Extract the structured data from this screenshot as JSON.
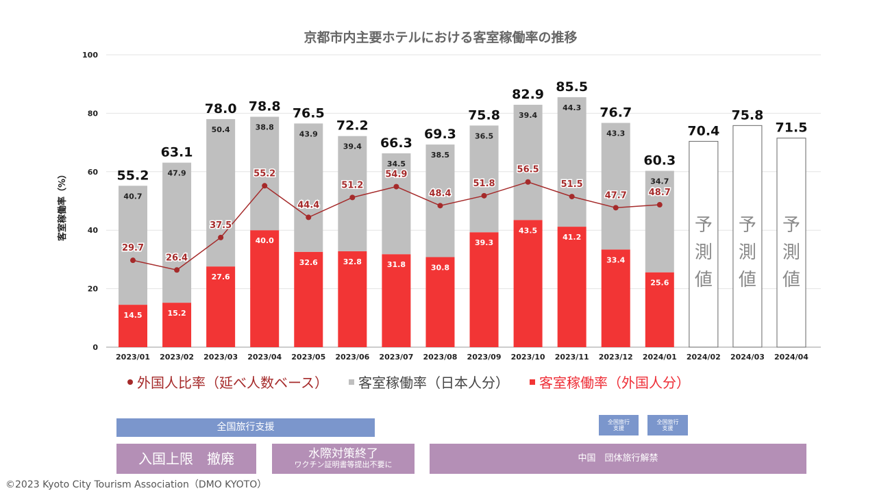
{
  "chart_data": {
    "type": "bar",
    "stacked": true,
    "title": "京都市内主要ホテルにおける客室稼働率の推移",
    "xlabel": "",
    "ylabel": "客室稼働率（%）",
    "ylim": [
      0,
      100
    ],
    "yticks": [
      0,
      20,
      40,
      60,
      80,
      100
    ],
    "grid": true,
    "legend_position": "bottom",
    "categories": [
      "2023/01",
      "2023/02",
      "2023/03",
      "2023/04",
      "2023/05",
      "2023/06",
      "2023/07",
      "2023/08",
      "2023/09",
      "2023/10",
      "2023/11",
      "2023/12",
      "2024/01",
      "2024/02",
      "2024/03",
      "2024/04"
    ],
    "series": [
      {
        "name": "客室稼働率（外国人分）",
        "type": "bar",
        "color": "#f23535",
        "values": [
          14.5,
          15.2,
          27.6,
          40.0,
          32.6,
          32.8,
          31.8,
          30.8,
          39.3,
          43.5,
          41.2,
          33.4,
          25.6,
          null,
          null,
          null
        ]
      },
      {
        "name": "客室稼働率（日本人分）",
        "type": "bar",
        "color": "#bfbfbf",
        "values": [
          40.7,
          47.9,
          50.4,
          38.8,
          43.9,
          39.4,
          34.5,
          38.5,
          36.5,
          39.4,
          44.3,
          43.3,
          34.7,
          null,
          null,
          null
        ]
      },
      {
        "name": "外国人比率（延べ人数ベース）",
        "type": "line",
        "color": "#a52a2a",
        "values": [
          29.7,
          26.4,
          37.5,
          55.2,
          44.4,
          51.2,
          54.9,
          48.4,
          51.8,
          56.5,
          51.5,
          47.7,
          48.7,
          null,
          null,
          null
        ]
      }
    ],
    "totals": [
      55.2,
      63.1,
      78.0,
      78.8,
      76.5,
      72.2,
      66.3,
      69.3,
      75.8,
      82.9,
      85.5,
      76.7,
      60.3,
      70.4,
      75.8,
      71.5
    ],
    "forecast": {
      "label": "予測値",
      "categories": [
        "2024/02",
        "2024/03",
        "2024/04"
      ],
      "values": [
        70.4,
        75.8,
        71.5
      ]
    }
  },
  "legend": {
    "ratio": "外国人比率（延べ人数ベース）",
    "japanese": "客室稼働率（日本人分）",
    "foreign": "客室稼働率（外国人分）"
  },
  "events": {
    "travel_support_main": "全国旅行支援",
    "travel_support_short_1": [
      "全国旅行",
      "支援"
    ],
    "travel_support_short_2": [
      "全国旅行",
      "支援"
    ],
    "entry_cap_removed": "入国上限　撤廃",
    "border_measures_end": "水際対策終了",
    "border_measures_end_sub": "ワクチン証明書等提出不要に",
    "china_group_travel": "中国　団体旅行解禁"
  },
  "footer": "©2023 Kyoto City Tourism Association（DMO KYOTO）"
}
